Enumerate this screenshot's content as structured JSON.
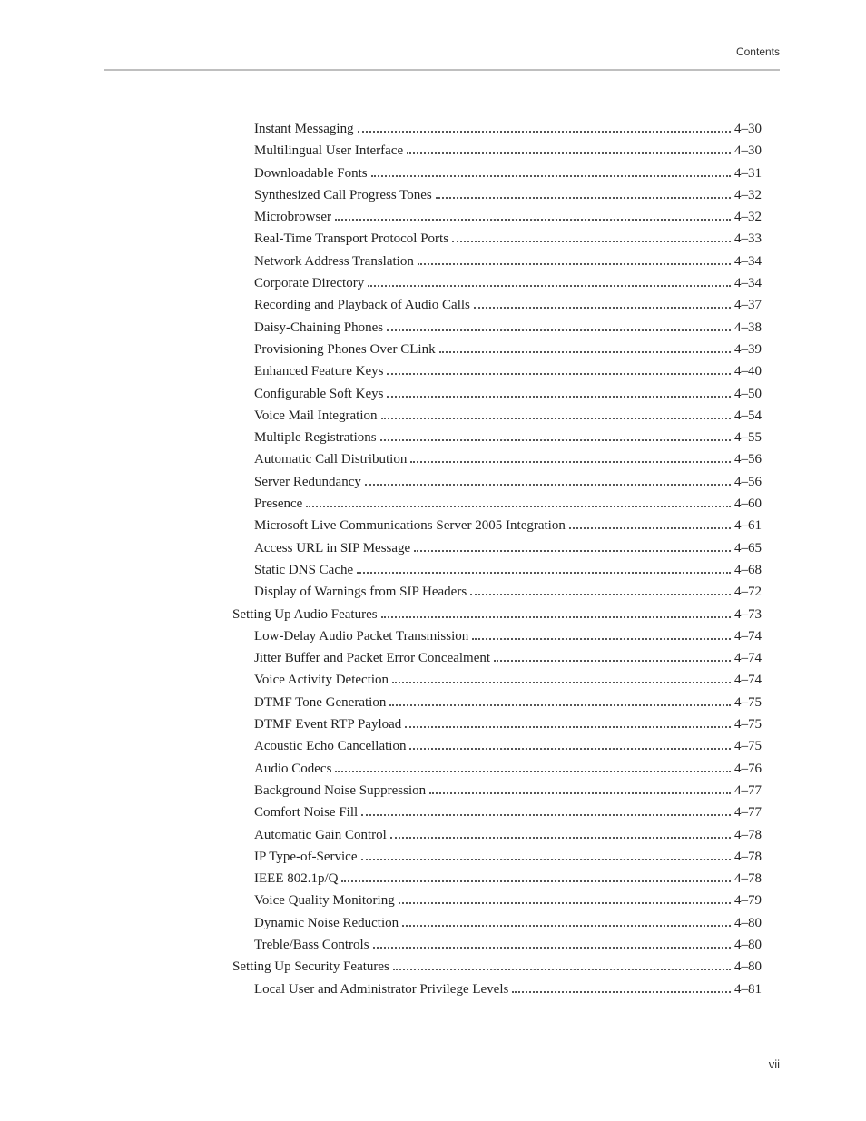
{
  "header_label": "Contents",
  "page_number": "vii",
  "toc": [
    {
      "title": "Instant Messaging",
      "page": "4–30",
      "indent": 0
    },
    {
      "title": "Multilingual User Interface",
      "page": "4–30",
      "indent": 0
    },
    {
      "title": "Downloadable Fonts",
      "page": "4–31",
      "indent": 0
    },
    {
      "title": "Synthesized Call Progress Tones",
      "page": "4–32",
      "indent": 0
    },
    {
      "title": "Microbrowser",
      "page": "4–32",
      "indent": 0
    },
    {
      "title": "Real-Time Transport Protocol Ports",
      "page": "4–33",
      "indent": 0
    },
    {
      "title": "Network Address Translation",
      "page": "4–34",
      "indent": 0
    },
    {
      "title": "Corporate Directory",
      "page": "4–34",
      "indent": 0
    },
    {
      "title": "Recording and Playback of Audio Calls",
      "page": "4–37",
      "indent": 0
    },
    {
      "title": "Daisy-Chaining Phones",
      "page": "4–38",
      "indent": 0
    },
    {
      "title": "Provisioning Phones Over CLink",
      "page": "4–39",
      "indent": 0
    },
    {
      "title": "Enhanced Feature Keys",
      "page": "4–40",
      "indent": 0
    },
    {
      "title": "Configurable Soft Keys",
      "page": "4–50",
      "indent": 0
    },
    {
      "title": "Voice Mail Integration",
      "page": "4–54",
      "indent": 0
    },
    {
      "title": "Multiple Registrations",
      "page": "4–55",
      "indent": 0
    },
    {
      "title": "Automatic Call Distribution",
      "page": "4–56",
      "indent": 0
    },
    {
      "title": "Server Redundancy",
      "page": "4–56",
      "indent": 0
    },
    {
      "title": "Presence",
      "page": "4–60",
      "indent": 0
    },
    {
      "title": "Microsoft Live Communications Server 2005 Integration",
      "page": "4–61",
      "indent": 0
    },
    {
      "title": "Access URL in SIP Message",
      "page": "4–65",
      "indent": 0
    },
    {
      "title": "Static DNS Cache",
      "page": "4–68",
      "indent": 0
    },
    {
      "title": "Display of Warnings from SIP Headers",
      "page": "4–72",
      "indent": 0
    },
    {
      "title": "Setting Up Audio Features",
      "page": "4–73",
      "indent": -1
    },
    {
      "title": "Low-Delay Audio Packet Transmission",
      "page": "4–74",
      "indent": 0
    },
    {
      "title": "Jitter Buffer and Packet Error Concealment",
      "page": "4–74",
      "indent": 0
    },
    {
      "title": "Voice Activity Detection",
      "page": "4–74",
      "indent": 0
    },
    {
      "title": "DTMF Tone Generation",
      "page": "4–75",
      "indent": 0
    },
    {
      "title": "DTMF Event RTP Payload",
      "page": "4–75",
      "indent": 0
    },
    {
      "title": "Acoustic Echo Cancellation",
      "page": "4–75",
      "indent": 0
    },
    {
      "title": "Audio Codecs",
      "page": "4–76",
      "indent": 0
    },
    {
      "title": "Background Noise Suppression",
      "page": "4–77",
      "indent": 0
    },
    {
      "title": "Comfort Noise Fill",
      "page": "4–77",
      "indent": 0
    },
    {
      "title": "Automatic Gain Control",
      "page": "4–78",
      "indent": 0
    },
    {
      "title": "IP Type-of-Service",
      "page": "4–78",
      "indent": 0
    },
    {
      "title": "IEEE 802.1p/Q",
      "page": "4–78",
      "indent": 0
    },
    {
      "title": "Voice Quality Monitoring",
      "page": "4–79",
      "indent": 0
    },
    {
      "title": "Dynamic Noise Reduction",
      "page": "4–80",
      "indent": 0
    },
    {
      "title": "Treble/Bass Controls",
      "page": "4–80",
      "indent": 0
    },
    {
      "title": "Setting Up Security Features",
      "page": "4–80",
      "indent": -1
    },
    {
      "title": "Local User and Administrator Privilege Levels",
      "page": "4–81",
      "indent": 0
    }
  ]
}
